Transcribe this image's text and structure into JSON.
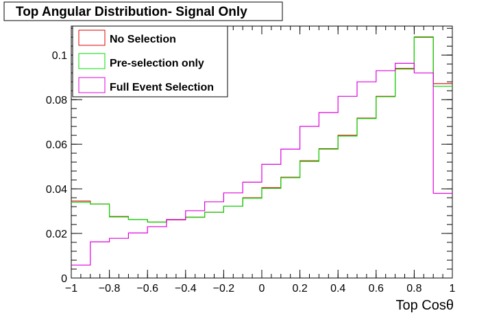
{
  "chart_data": {
    "type": "histogram",
    "title": "Top Angular Distribution- Signal Only",
    "xlabel": "Top Cosθ",
    "ylabel": "",
    "xlim": [
      -1,
      1
    ],
    "ylim": [
      0,
      0.113
    ],
    "bin_edges": [
      -1,
      -0.9,
      -0.8,
      -0.7,
      -0.6,
      -0.5,
      -0.4,
      -0.3,
      -0.2,
      -0.1,
      0,
      0.1,
      0.2,
      0.3,
      0.4,
      0.5,
      0.6,
      0.7,
      0.8,
      0.9,
      1
    ],
    "x_ticks": [
      {
        "value": -1,
        "label": "−1"
      },
      {
        "value": -0.8,
        "label": "−0.8"
      },
      {
        "value": -0.6,
        "label": "−0.6"
      },
      {
        "value": -0.4,
        "label": "−0.4"
      },
      {
        "value": -0.2,
        "label": "−0.2"
      },
      {
        "value": 0,
        "label": "0"
      },
      {
        "value": 0.2,
        "label": "0.2"
      },
      {
        "value": 0.4,
        "label": "0.4"
      },
      {
        "value": 0.6,
        "label": "0.6"
      },
      {
        "value": 0.8,
        "label": "0.8"
      },
      {
        "value": 1,
        "label": "1"
      }
    ],
    "y_ticks": [
      {
        "value": 0,
        "label": "0"
      },
      {
        "value": 0.02,
        "label": "0.02"
      },
      {
        "value": 0.04,
        "label": "0.04"
      },
      {
        "value": 0.06,
        "label": "0.06"
      },
      {
        "value": 0.08,
        "label": "0.08"
      },
      {
        "value": 0.1,
        "label": "0.1"
      }
    ],
    "legend_position": "top-left",
    "series": [
      {
        "name": "No Selection",
        "color": "#e00000",
        "values": [
          0.0345,
          0.0332,
          0.0276,
          0.0262,
          0.0251,
          0.0261,
          0.0273,
          0.0295,
          0.0322,
          0.036,
          0.0405,
          0.0452,
          0.0526,
          0.058,
          0.064,
          0.0717,
          0.0815,
          0.094,
          0.108,
          0.0872
        ]
      },
      {
        "name": "Pre-selection only",
        "color": "#00dd00",
        "values": [
          0.034,
          0.0332,
          0.0274,
          0.0262,
          0.0251,
          0.0262,
          0.0272,
          0.0295,
          0.0322,
          0.0358,
          0.0402,
          0.045,
          0.0523,
          0.0578,
          0.0637,
          0.0715,
          0.0813,
          0.0937,
          0.1082,
          0.086
        ]
      },
      {
        "name": "Full Event Selection",
        "color": "#dd00dd",
        "values": [
          0.0058,
          0.0162,
          0.0178,
          0.0202,
          0.023,
          0.0262,
          0.0302,
          0.0342,
          0.0382,
          0.043,
          0.051,
          0.0578,
          0.068,
          0.0742,
          0.0815,
          0.088,
          0.093,
          0.0963,
          0.092,
          0.038
        ]
      }
    ]
  }
}
